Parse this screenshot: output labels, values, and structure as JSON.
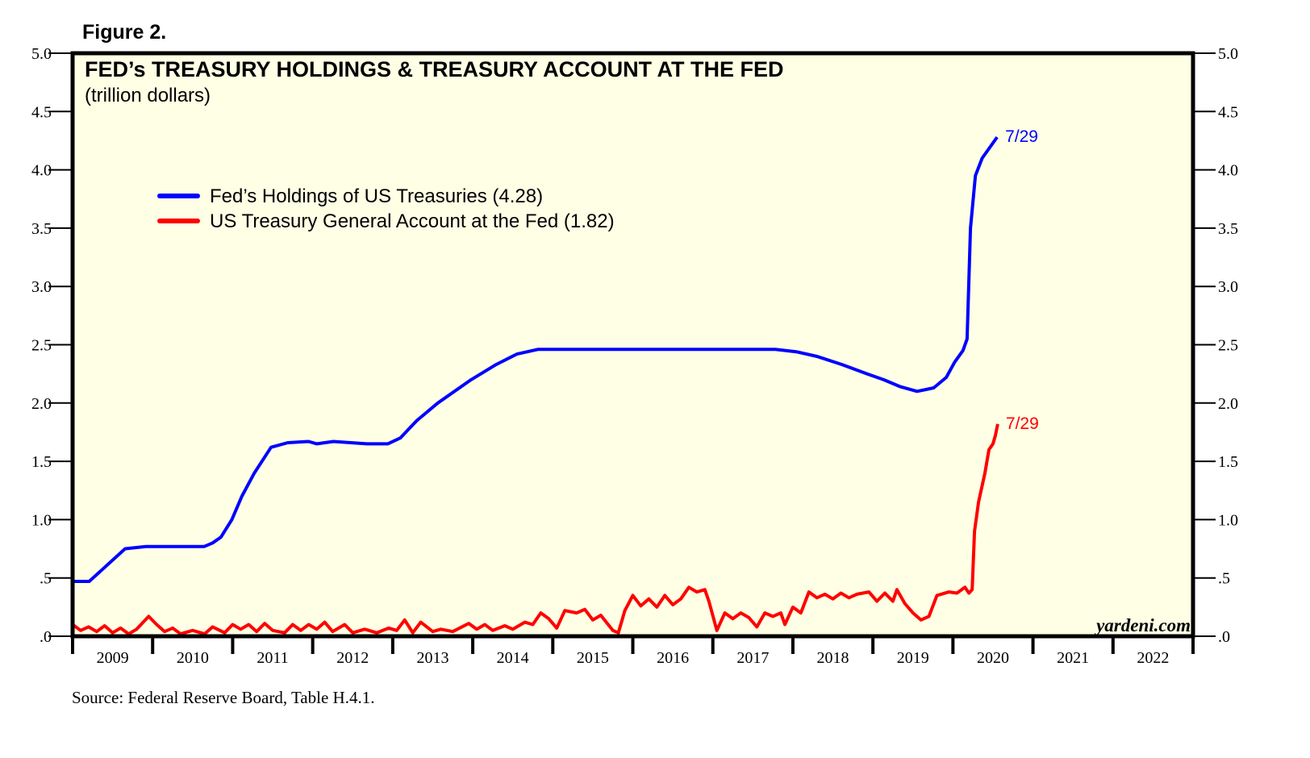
{
  "figure_label": "Figure 2.",
  "chart_data": {
    "type": "line",
    "title": "FED’s TREASURY HOLDINGS & TREASURY ACCOUNT AT THE FED",
    "subtitle": "(trillion dollars)",
    "xlabel": "",
    "ylabel": "trillion dollars",
    "xlim": [
      2009,
      2023
    ],
    "ylim": [
      0,
      5
    ],
    "grid": false,
    "legend_position": "top-left",
    "y_ticks": [
      0,
      0.5,
      1.0,
      1.5,
      2.0,
      2.5,
      3.0,
      3.5,
      4.0,
      4.5,
      5.0
    ],
    "y_tick_labels": [
      ".0",
      ".5",
      "1.0",
      "1.5",
      "2.0",
      "2.5",
      "3.0",
      "3.5",
      "4.0",
      "4.5",
      "5.0"
    ],
    "x_tick_labels": [
      "2009",
      "2010",
      "2011",
      "2012",
      "2013",
      "2014",
      "2015",
      "2016",
      "2017",
      "2018",
      "2019",
      "2020",
      "2021",
      "2022"
    ],
    "background_color": "#ffffe5",
    "series": [
      {
        "name": "Fed’s Holdings of US Treasuries (4.28)",
        "color": "#0000ff",
        "end_label": "7/29",
        "points": [
          [
            2009,
            0.47
          ],
          [
            2009.208,
            0.47
          ],
          [
            2009.656,
            0.75
          ],
          [
            2009.917,
            0.77
          ],
          [
            2010.646,
            0.77
          ],
          [
            2010.75,
            0.8
          ],
          [
            2010.854,
            0.85
          ],
          [
            2010.99,
            1.0
          ],
          [
            2011.115,
            1.2
          ],
          [
            2011.271,
            1.4
          ],
          [
            2011.479,
            1.62
          ],
          [
            2011.688,
            1.66
          ],
          [
            2011.948,
            1.67
          ],
          [
            2012.052,
            1.65
          ],
          [
            2012.26,
            1.67
          ],
          [
            2012.677,
            1.65
          ],
          [
            2012.938,
            1.65
          ],
          [
            2013.094,
            1.7
          ],
          [
            2013.302,
            1.85
          ],
          [
            2013.563,
            2.0
          ],
          [
            2013.979,
            2.2
          ],
          [
            2014.292,
            2.33
          ],
          [
            2014.552,
            2.42
          ],
          [
            2014.813,
            2.46
          ],
          [
            2017.781,
            2.46
          ],
          [
            2018.042,
            2.44
          ],
          [
            2018.302,
            2.4
          ],
          [
            2018.615,
            2.33
          ],
          [
            2018.927,
            2.25
          ],
          [
            2019.135,
            2.2
          ],
          [
            2019.344,
            2.14
          ],
          [
            2019.552,
            2.1
          ],
          [
            2019.76,
            2.13
          ],
          [
            2019.917,
            2.22
          ],
          [
            2020.021,
            2.35
          ],
          [
            2020.125,
            2.45
          ],
          [
            2020.177,
            2.55
          ],
          [
            2020.219,
            3.5
          ],
          [
            2020.281,
            3.95
          ],
          [
            2020.365,
            4.1
          ],
          [
            2020.552,
            4.28
          ]
        ]
      },
      {
        "name": "US Treasury General Account at the Fed (1.82)",
        "color": "#ff0000",
        "end_label": "7/29",
        "points": [
          [
            2009,
            0.1
          ],
          [
            2009.1,
            0.05
          ],
          [
            2009.2,
            0.08
          ],
          [
            2009.3,
            0.04
          ],
          [
            2009.4,
            0.09
          ],
          [
            2009.5,
            0.03
          ],
          [
            2009.6,
            0.07
          ],
          [
            2009.7,
            0.02
          ],
          [
            2009.8,
            0.06
          ],
          [
            2009.95,
            0.17
          ],
          [
            2010.05,
            0.1
          ],
          [
            2010.15,
            0.04
          ],
          [
            2010.25,
            0.07
          ],
          [
            2010.35,
            0.02
          ],
          [
            2010.5,
            0.05
          ],
          [
            2010.65,
            0.02
          ],
          [
            2010.75,
            0.08
          ],
          [
            2010.9,
            0.03
          ],
          [
            2011.0,
            0.1
          ],
          [
            2011.1,
            0.06
          ],
          [
            2011.2,
            0.1
          ],
          [
            2011.3,
            0.04
          ],
          [
            2011.4,
            0.11
          ],
          [
            2011.5,
            0.05
          ],
          [
            2011.65,
            0.03
          ],
          [
            2011.75,
            0.1
          ],
          [
            2011.85,
            0.05
          ],
          [
            2011.95,
            0.1
          ],
          [
            2012.05,
            0.06
          ],
          [
            2012.15,
            0.12
          ],
          [
            2012.25,
            0.04
          ],
          [
            2012.4,
            0.1
          ],
          [
            2012.5,
            0.03
          ],
          [
            2012.65,
            0.06
          ],
          [
            2012.8,
            0.03
          ],
          [
            2012.95,
            0.07
          ],
          [
            2013.05,
            0.05
          ],
          [
            2013.15,
            0.14
          ],
          [
            2013.25,
            0.03
          ],
          [
            2013.35,
            0.12
          ],
          [
            2013.5,
            0.04
          ],
          [
            2013.6,
            0.06
          ],
          [
            2013.75,
            0.04
          ],
          [
            2013.95,
            0.11
          ],
          [
            2014.05,
            0.06
          ],
          [
            2014.15,
            0.1
          ],
          [
            2014.25,
            0.05
          ],
          [
            2014.4,
            0.09
          ],
          [
            2014.5,
            0.06
          ],
          [
            2014.65,
            0.12
          ],
          [
            2014.75,
            0.1
          ],
          [
            2014.85,
            0.2
          ],
          [
            2014.95,
            0.15
          ],
          [
            2015.05,
            0.07
          ],
          [
            2015.15,
            0.22
          ],
          [
            2015.3,
            0.2
          ],
          [
            2015.4,
            0.23
          ],
          [
            2015.5,
            0.14
          ],
          [
            2015.6,
            0.18
          ],
          [
            2015.75,
            0.05
          ],
          [
            2015.82,
            0.03
          ],
          [
            2015.9,
            0.22
          ],
          [
            2016.0,
            0.35
          ],
          [
            2016.1,
            0.26
          ],
          [
            2016.2,
            0.32
          ],
          [
            2016.3,
            0.25
          ],
          [
            2016.4,
            0.35
          ],
          [
            2016.5,
            0.27
          ],
          [
            2016.6,
            0.32
          ],
          [
            2016.7,
            0.42
          ],
          [
            2016.8,
            0.38
          ],
          [
            2016.9,
            0.4
          ],
          [
            2016.95,
            0.3
          ],
          [
            2017.05,
            0.05
          ],
          [
            2017.15,
            0.2
          ],
          [
            2017.25,
            0.15
          ],
          [
            2017.35,
            0.2
          ],
          [
            2017.45,
            0.16
          ],
          [
            2017.55,
            0.08
          ],
          [
            2017.65,
            0.2
          ],
          [
            2017.75,
            0.17
          ],
          [
            2017.85,
            0.2
          ],
          [
            2017.9,
            0.1
          ],
          [
            2018.0,
            0.25
          ],
          [
            2018.1,
            0.2
          ],
          [
            2018.2,
            0.38
          ],
          [
            2018.3,
            0.33
          ],
          [
            2018.4,
            0.36
          ],
          [
            2018.5,
            0.32
          ],
          [
            2018.6,
            0.37
          ],
          [
            2018.7,
            0.33
          ],
          [
            2018.8,
            0.36
          ],
          [
            2018.95,
            0.38
          ],
          [
            2019.05,
            0.3
          ],
          [
            2019.15,
            0.37
          ],
          [
            2019.25,
            0.3
          ],
          [
            2019.3,
            0.4
          ],
          [
            2019.4,
            0.28
          ],
          [
            2019.5,
            0.2
          ],
          [
            2019.6,
            0.14
          ],
          [
            2019.7,
            0.17
          ],
          [
            2019.8,
            0.35
          ],
          [
            2019.95,
            0.38
          ],
          [
            2020.05,
            0.37
          ],
          [
            2020.15,
            0.42
          ],
          [
            2020.2,
            0.37
          ],
          [
            2020.24,
            0.4
          ],
          [
            2020.27,
            0.9
          ],
          [
            2020.32,
            1.15
          ],
          [
            2020.4,
            1.4
          ],
          [
            2020.45,
            1.6
          ],
          [
            2020.5,
            1.65
          ],
          [
            2020.53,
            1.72
          ],
          [
            2020.56,
            1.82
          ]
        ]
      }
    ]
  },
  "watermark": "yardeni.com",
  "source": "Source: Federal Reserve Board, Table H.4.1."
}
